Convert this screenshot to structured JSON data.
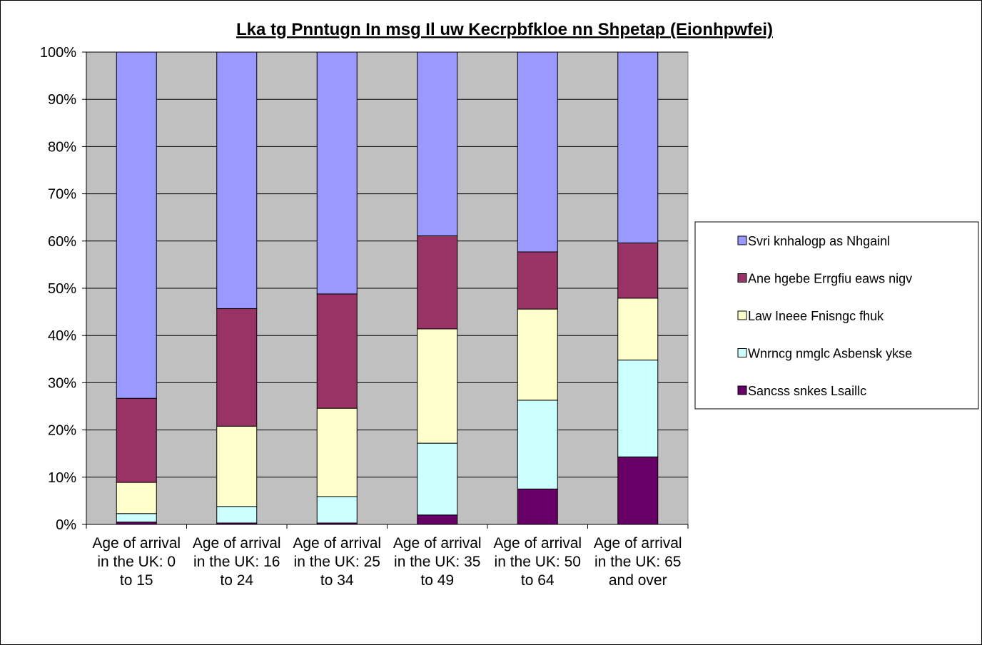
{
  "chart_data": {
    "type": "bar",
    "stacked": true,
    "percent": true,
    "title": "Lka tg Pnntugn In msg Il uw Kecrpbfkloe nn Shpetap (Eionhpwfei)",
    "xlabel": "",
    "ylabel": "",
    "ylim": [
      0,
      100
    ],
    "yticks": [
      "0%",
      "10%",
      "20%",
      "30%",
      "40%",
      "50%",
      "60%",
      "70%",
      "80%",
      "90%",
      "100%"
    ],
    "grid": true,
    "legend_position": "right",
    "categories": [
      [
        "Age of arrival",
        "in the UK: 0",
        "to 15"
      ],
      [
        "Age of arrival",
        "in the UK: 16",
        "to 24"
      ],
      [
        "Age of arrival",
        "in the UK: 25",
        "to 34"
      ],
      [
        "Age of arrival",
        "in the UK: 35",
        "to 49"
      ],
      [
        "Age of arrival",
        "in the UK: 50",
        "to 64"
      ],
      [
        "Age of arrival",
        "in the UK: 65",
        "and over"
      ]
    ],
    "series": [
      {
        "name": "Sancss snkes Lsaillc",
        "color": "#660066",
        "values": [
          0.5,
          0.3,
          0.3,
          2.0,
          7.5,
          14.3
        ]
      },
      {
        "name": "Wnrncg nmglc Asbensk ykse",
        "color": "#ccffff",
        "values": [
          1.8,
          3.5,
          5.6,
          15.2,
          18.8,
          20.5
        ]
      },
      {
        "name": "Law Ineee Fnisngc fhuk",
        "color": "#ffffcc",
        "values": [
          6.6,
          17.0,
          18.7,
          24.2,
          19.3,
          13.1
        ]
      },
      {
        "name": "Ane hgebe Errgfiu eaws nigv",
        "color": "#993366",
        "values": [
          17.8,
          24.9,
          24.2,
          19.7,
          12.1,
          11.7
        ]
      },
      {
        "name": "Svri knhalogp as Nhgainl",
        "color": "#9999ff",
        "values": [
          73.3,
          54.3,
          51.2,
          38.9,
          42.3,
          40.4
        ]
      }
    ],
    "plot_bg": "#c0c0c0",
    "gridline_color": "#000000"
  }
}
